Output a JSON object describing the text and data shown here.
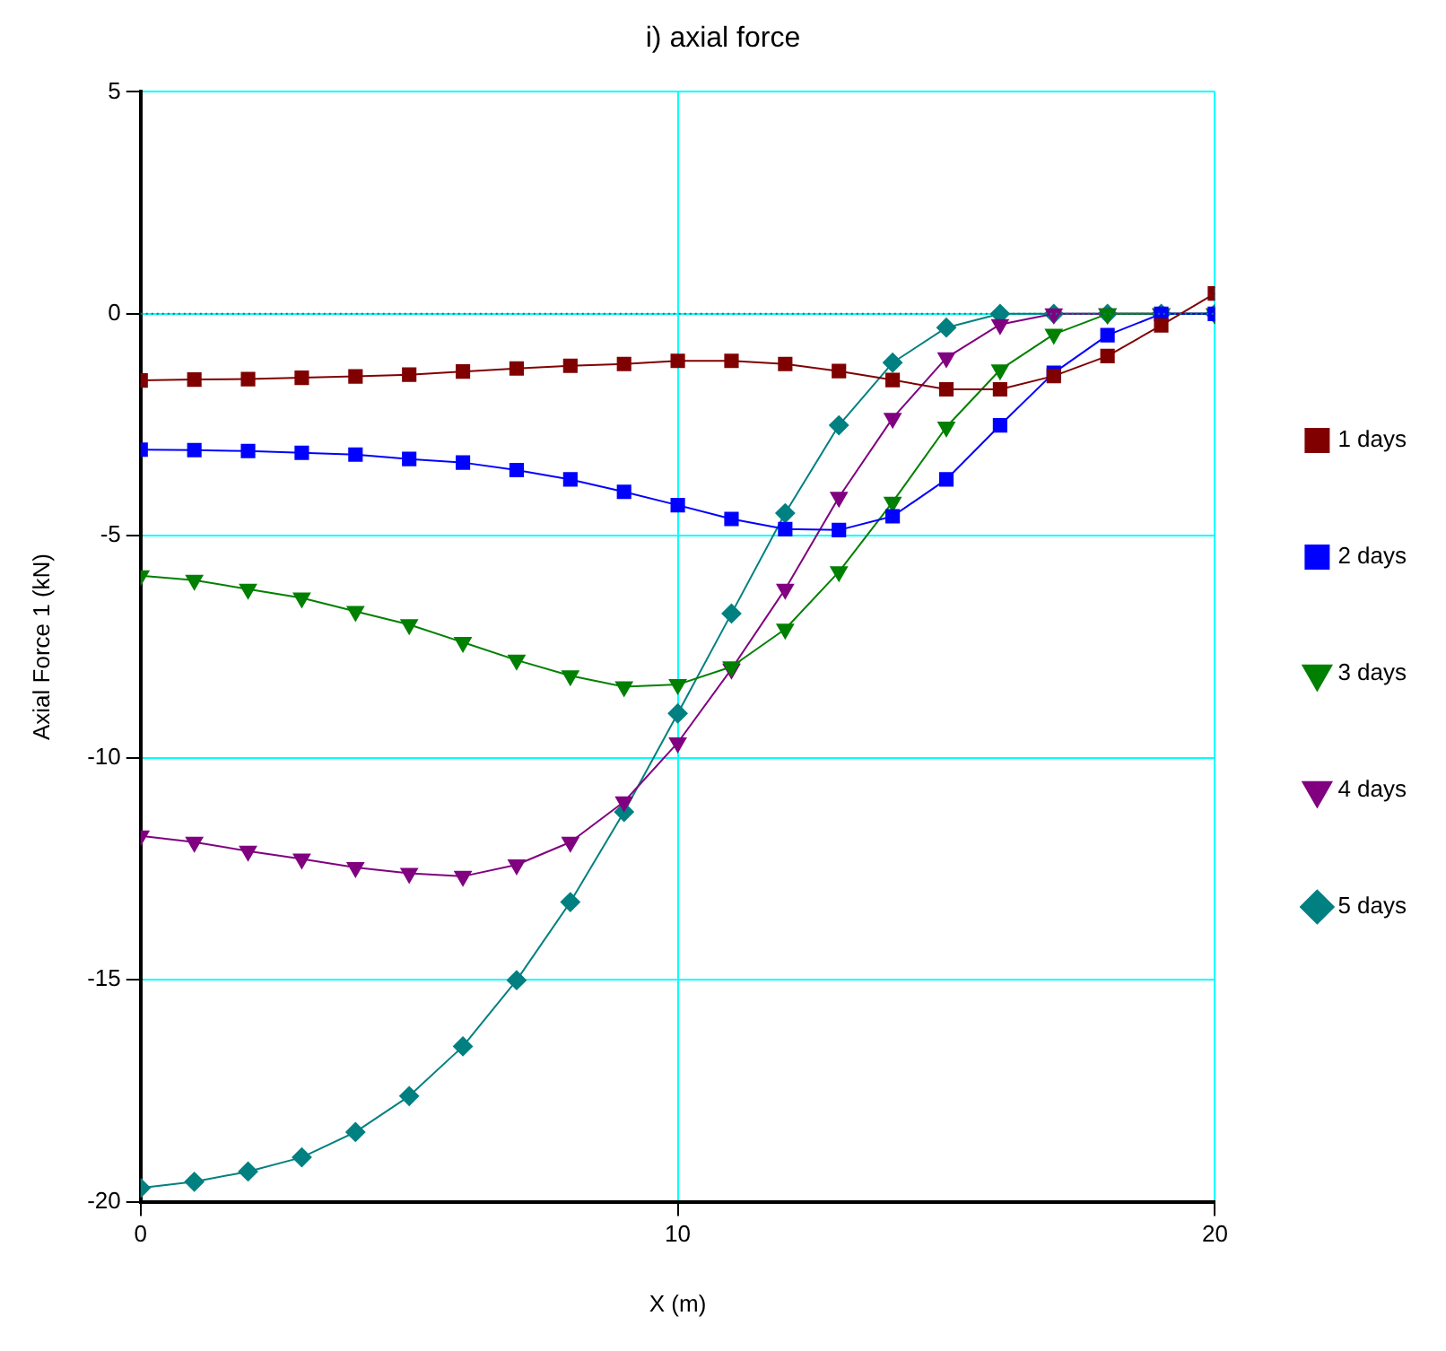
{
  "chart_data": {
    "type": "line",
    "title": "i) axial force",
    "xlabel": "X (m)",
    "ylabel": "Axial Force 1 (kN)",
    "x": [
      0,
      1,
      2,
      3,
      4,
      5,
      6,
      7,
      8,
      9,
      10,
      11,
      12,
      13,
      14,
      15,
      16,
      17,
      18,
      19,
      20
    ],
    "series": [
      {
        "name": "1 days",
        "color": "#800000",
        "marker": "square",
        "values": [
          -1.5,
          -1.48,
          -1.47,
          -1.44,
          -1.41,
          -1.37,
          -1.3,
          -1.23,
          -1.17,
          -1.13,
          -1.06,
          -1.06,
          -1.13,
          -1.29,
          -1.49,
          -1.7,
          -1.7,
          -1.4,
          -0.95,
          -0.26,
          0.46
        ]
      },
      {
        "name": "2 days",
        "color": "#0000ff",
        "marker": "square",
        "values": [
          -3.06,
          -3.07,
          -3.09,
          -3.13,
          -3.17,
          -3.27,
          -3.35,
          -3.52,
          -3.73,
          -4.01,
          -4.31,
          -4.62,
          -4.85,
          -4.87,
          -4.56,
          -3.73,
          -2.51,
          -1.33,
          -0.48,
          0,
          0
        ]
      },
      {
        "name": "3 days",
        "color": "#008000",
        "marker": "triangle",
        "values": [
          -5.9,
          -6.0,
          -6.2,
          -6.4,
          -6.7,
          -7.0,
          -7.4,
          -7.8,
          -8.15,
          -8.4,
          -8.35,
          -7.95,
          -7.1,
          -5.81,
          -4.24,
          -2.55,
          -1.26,
          -0.46,
          0,
          0,
          0
        ]
      },
      {
        "name": "4 days",
        "color": "#800080",
        "marker": "triangle",
        "values": [
          -11.76,
          -11.9,
          -12.1,
          -12.28,
          -12.47,
          -12.6,
          -12.67,
          -12.41,
          -11.9,
          -10.99,
          -9.66,
          -8.0,
          -6.2,
          -4.13,
          -2.35,
          -0.99,
          -0.24,
          0,
          0,
          0,
          0
        ]
      },
      {
        "name": "5 days",
        "color": "#008080",
        "marker": "diamond",
        "values": [
          -19.69,
          -19.55,
          -19.32,
          -19.0,
          -18.43,
          -17.62,
          -16.5,
          -15.01,
          -13.25,
          -11.22,
          -9.0,
          -6.75,
          -4.49,
          -2.51,
          -1.1,
          -0.31,
          0,
          0,
          0,
          0,
          0
        ]
      }
    ],
    "xlim": [
      0,
      20
    ],
    "xticks": [
      0,
      10,
      20
    ],
    "ylim": [
      -20,
      5
    ],
    "yticks": [
      -20,
      -15,
      -10,
      -5,
      0,
      5
    ],
    "ref_lines": [
      {
        "axis": "y",
        "value": 0,
        "color": "#008080",
        "line_style": "dotted"
      }
    ],
    "grid": true,
    "legend": "right",
    "line_style": "solid"
  }
}
